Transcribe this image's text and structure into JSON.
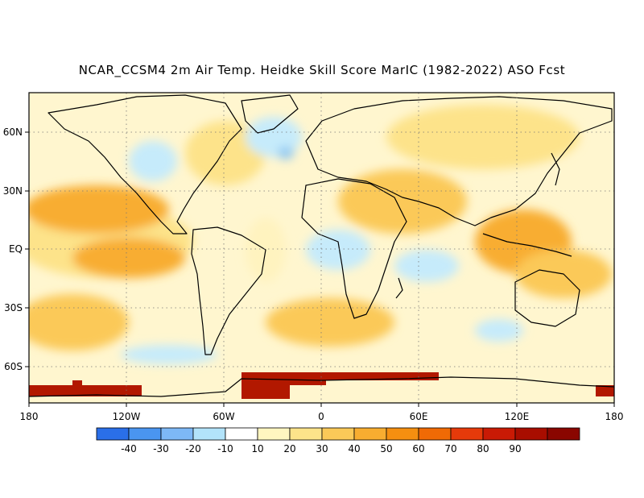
{
  "title": "NCAR_CCSM4 2m Air Temp. Heidke Skill Score MarIC (1982-2022) ASO Fcst",
  "axes": {
    "lat_labels": [
      "60N",
      "30N",
      "EQ",
      "30S",
      "60S"
    ],
    "lon_labels": [
      "180",
      "120W",
      "60W",
      "0",
      "60E",
      "120E",
      "180"
    ]
  },
  "colorbar": {
    "colors": [
      "#2a6fe8",
      "#4a95f0",
      "#7db8f6",
      "#b2e3fa",
      "#ffffff",
      "#fff6c0",
      "#fde38a",
      "#fbc958",
      "#f8ad30",
      "#f58f10",
      "#f06a05",
      "#e63a0a",
      "#c91a05",
      "#a80d00",
      "#8a0600"
    ],
    "labels": [
      "-40",
      "-30",
      "-20",
      "-10",
      "10",
      "20",
      "30",
      "40",
      "50",
      "60",
      "70",
      "80",
      "90"
    ]
  },
  "regions": {
    "warm_light": "#fff3bf",
    "warm_mid": "#fde38a",
    "warm_strong": "#fbc958",
    "warm_orange": "#f8ad30",
    "cool_light": "#c6ebfb",
    "cool_mid": "#8fc8f2",
    "antarctic_red": "#b21800"
  }
}
